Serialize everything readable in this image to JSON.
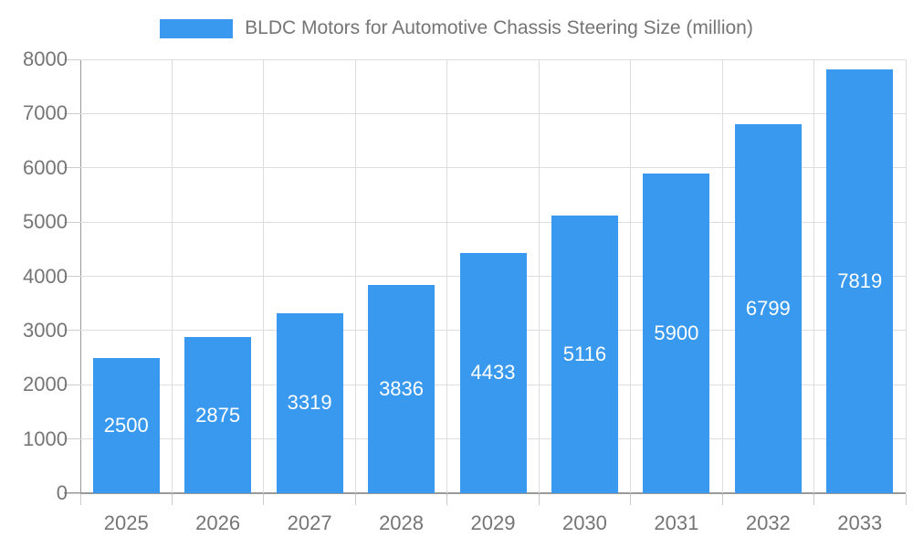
{
  "legend": {
    "swatch_color": "#3999EE"
  },
  "chart_data": {
    "type": "bar",
    "title": "BLDC Motors for Automotive Chassis Steering Size (million)",
    "categories": [
      "2025",
      "2026",
      "2027",
      "2028",
      "2029",
      "2030",
      "2031",
      "2032",
      "2033"
    ],
    "values": [
      2500,
      2875,
      3319,
      3836,
      4433,
      5116,
      5900,
      6799,
      7819
    ],
    "bar_labels": [
      "2500",
      "2875",
      "3319",
      "3836",
      "4433",
      "5116",
      "5900",
      "6799",
      "7819"
    ],
    "y_ticks": [
      "0",
      "1000",
      "2000",
      "3000",
      "4000",
      "5000",
      "6000",
      "7000",
      "8000"
    ],
    "ylim": [
      0,
      8000
    ],
    "xlabel": "",
    "ylabel": "",
    "grid": true,
    "legend_position": "top-center",
    "bar_color": "#3999EE",
    "value_label_color": "#ffffff"
  },
  "colors": {
    "gridline": "#dddddd",
    "axis_line": "#999999",
    "tick_text": "#757575"
  }
}
